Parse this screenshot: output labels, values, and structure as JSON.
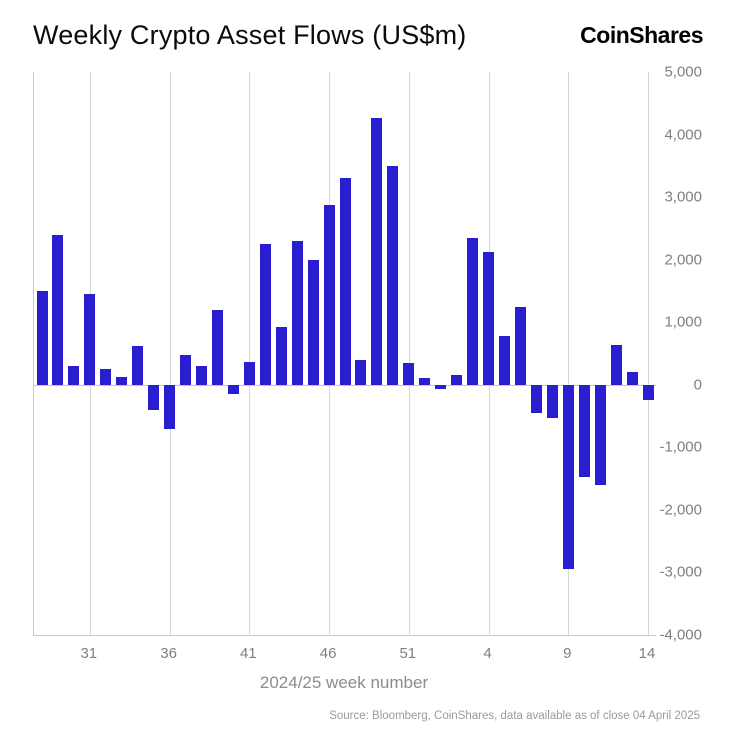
{
  "header": {
    "title": "Weekly Crypto Asset Flows (US$m)",
    "brand": "CoinShares"
  },
  "chart_data": {
    "type": "bar",
    "title": "Weekly Crypto Asset Flows (US$m)",
    "xlabel": "2024/25 week number",
    "ylabel": "",
    "ylim": [
      -4000,
      5000
    ],
    "grid": "vertical-only",
    "legend": "none",
    "bar_color": "#2a1ed3",
    "categories": [
      "28",
      "29",
      "30",
      "31",
      "32",
      "33",
      "34",
      "35",
      "36",
      "37",
      "38",
      "39",
      "40",
      "41",
      "42",
      "43",
      "44",
      "45",
      "46",
      "47",
      "48",
      "49",
      "50",
      "51",
      "52",
      "1",
      "2",
      "3",
      "4",
      "5",
      "6",
      "7",
      "8",
      "9",
      "10",
      "11",
      "12",
      "13",
      "14"
    ],
    "values": [
      1500,
      2400,
      300,
      1450,
      250,
      130,
      620,
      -400,
      -700,
      480,
      300,
      1200,
      -150,
      370,
      2250,
      930,
      2300,
      2000,
      2870,
      3300,
      400,
      4270,
      3500,
      350,
      110,
      -75,
      160,
      2350,
      2130,
      780,
      1250,
      -450,
      -530,
      -2950,
      -1480,
      -1600,
      640,
      200,
      -240
    ],
    "x_ticks": [
      {
        "label": "31",
        "index": 3
      },
      {
        "label": "36",
        "index": 8
      },
      {
        "label": "41",
        "index": 13
      },
      {
        "label": "46",
        "index": 18
      },
      {
        "label": "51",
        "index": 23
      },
      {
        "label": "4",
        "index": 28
      },
      {
        "label": "9",
        "index": 33
      },
      {
        "label": "14",
        "index": 38
      }
    ],
    "y_ticks": [
      {
        "label": "5,000",
        "value": 5000
      },
      {
        "label": "4,000",
        "value": 4000
      },
      {
        "label": "3,000",
        "value": 3000
      },
      {
        "label": "2,000",
        "value": 2000
      },
      {
        "label": "1,000",
        "value": 1000
      },
      {
        "label": "0",
        "value": 0
      },
      {
        "label": "-1,000",
        "value": -1000
      },
      {
        "label": "-2,000",
        "value": -2000
      },
      {
        "label": "-3,000",
        "value": -3000
      },
      {
        "label": "-4,000",
        "value": -4000
      }
    ]
  },
  "footer": {
    "source": "Source: Bloomberg, CoinShares, data available as of close 04 April 2025"
  }
}
